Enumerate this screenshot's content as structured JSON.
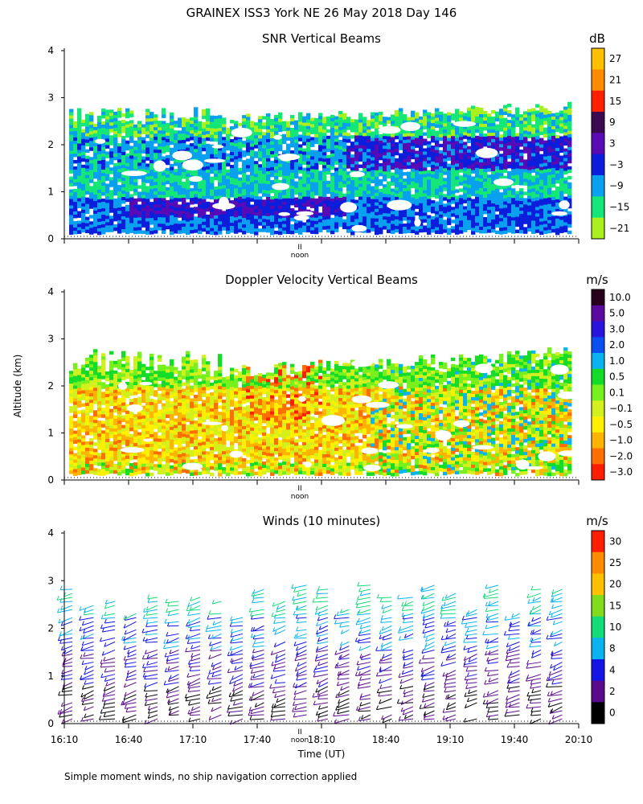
{
  "figure_title": "GRAINEX ISS3 York NE  26 May 2018 Day 146",
  "y_axis_label": "Altitude (km)",
  "x_axis_label": "Time (UT)",
  "footnote": "Simple moment winds, no ship navigation correction applied",
  "noon_label": "noon",
  "noon_marker": "II",
  "chart_data": [
    {
      "type": "heatmap",
      "title": "SNR Vertical Beams",
      "units": "dB",
      "ylim": [
        0,
        4
      ],
      "yticks": [
        "0",
        "1",
        "2",
        "3",
        "4"
      ],
      "x_range": [
        "16:10",
        "20:10"
      ],
      "colorbar": {
        "labels": [
          "27",
          "21",
          "15",
          "9",
          "3",
          "−3",
          "−9",
          "−15",
          "−21"
        ],
        "colors": [
          "#ffc000",
          "#ff8c00",
          "#ff2000",
          "#3c0a50",
          "#5a0ab4",
          "#0a1edc",
          "#0aa0f0",
          "#14e678",
          "#aaf01e"
        ]
      }
    },
    {
      "type": "heatmap",
      "title": "Doppler Velocity Vertical Beams",
      "units": "m/s",
      "ylim": [
        0,
        4
      ],
      "yticks": [
        "0",
        "1",
        "2",
        "3",
        "4"
      ],
      "x_range": [
        "16:10",
        "20:10"
      ],
      "colorbar": {
        "labels": [
          "10.0",
          "5.0",
          "3.0",
          "2.0",
          "1.0",
          "0.5",
          "0.1",
          "−0.1",
          "−0.5",
          "−1.0",
          "−2.0",
          "−3.0"
        ],
        "colors": [
          "#28001e",
          "#5a0aa0",
          "#2814dc",
          "#0a50f0",
          "#0ab4f0",
          "#14dc28",
          "#78f01e",
          "#d2f01e",
          "#fff000",
          "#ffb400",
          "#ff6e00",
          "#ff1e00"
        ]
      }
    },
    {
      "type": "barbs",
      "title": "Winds (10 minutes)",
      "units": "m/s",
      "ylim": [
        0,
        4
      ],
      "yticks": [
        "0",
        "1",
        "2",
        "3",
        "4"
      ],
      "xticks": [
        "16:10",
        "16:40",
        "17:10",
        "17:40",
        "18:10",
        "18:40",
        "19:10",
        "19:40",
        "20:10"
      ],
      "colorbar": {
        "labels": [
          "30",
          "25",
          "20",
          "15",
          "10",
          "8",
          "4",
          "2",
          "0"
        ],
        "colors": [
          "#ff1e00",
          "#ff8c00",
          "#ffc000",
          "#82dc1e",
          "#14dc78",
          "#0ab4f0",
          "#1414e6",
          "#5a0a8c",
          "#000000"
        ]
      }
    }
  ]
}
